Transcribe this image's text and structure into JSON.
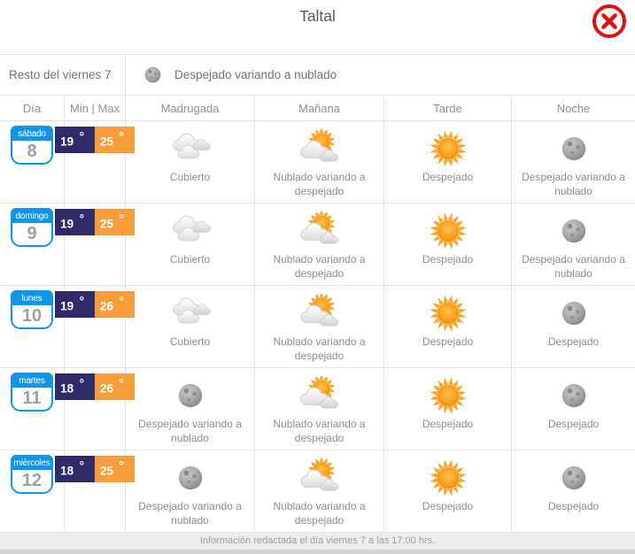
{
  "window": {
    "title": "Taltal"
  },
  "today": {
    "label": "Resto del viernes 7",
    "icon": "moon",
    "condition": "Despejado variando a nublado"
  },
  "table": {
    "columns": [
      "Día",
      "Min | Max",
      "Madrugada",
      "Mañana",
      "Tarde",
      "Noche"
    ],
    "rows": [
      {
        "day_name": "sábado",
        "day_number": "8",
        "min": "19°",
        "max": "25°",
        "periods": [
          {
            "icon": "clouds",
            "label": "Cubierto"
          },
          {
            "icon": "sun-cloud",
            "label": "Nublado variando a despejado"
          },
          {
            "icon": "sun",
            "label": "Despejado"
          },
          {
            "icon": "moon",
            "label": "Despejado variando a nublado"
          }
        ]
      },
      {
        "day_name": "domingo",
        "day_number": "9",
        "min": "19°",
        "max": "25°",
        "periods": [
          {
            "icon": "clouds",
            "label": "Cubierto"
          },
          {
            "icon": "sun-cloud",
            "label": "Nublado variando a despejado"
          },
          {
            "icon": "sun",
            "label": "Despejado"
          },
          {
            "icon": "moon",
            "label": "Despejado variando a nublado"
          }
        ]
      },
      {
        "day_name": "lunes",
        "day_number": "10",
        "min": "19°",
        "max": "26°",
        "periods": [
          {
            "icon": "clouds",
            "label": "Cubierto"
          },
          {
            "icon": "sun-cloud",
            "label": "Nublado variando a despejado"
          },
          {
            "icon": "sun",
            "label": "Despejado"
          },
          {
            "icon": "moon",
            "label": "Despejado"
          }
        ]
      },
      {
        "day_name": "martes",
        "day_number": "11",
        "min": "18°",
        "max": "26°",
        "periods": [
          {
            "icon": "moon",
            "label": "Despejado variando a nublado"
          },
          {
            "icon": "sun-cloud",
            "label": "Nublado variando a despejado"
          },
          {
            "icon": "sun",
            "label": "Despejado"
          },
          {
            "icon": "moon",
            "label": "Despejado"
          }
        ]
      },
      {
        "day_name": "miércoles",
        "day_number": "12",
        "min": "18°",
        "max": "25°",
        "periods": [
          {
            "icon": "moon",
            "label": "Despejado variando a nublado"
          },
          {
            "icon": "sun-cloud",
            "label": "Nublado variando a despejado"
          },
          {
            "icon": "sun",
            "label": "Despejado"
          },
          {
            "icon": "moon",
            "label": "Despejado"
          }
        ]
      }
    ]
  },
  "footer": {
    "note": "Información redactada el día viernes 7 a las 17:00 hrs."
  },
  "colors": {
    "calendar_blue": "#1295e6",
    "min_badge": "#2e2b68",
    "max_badge": "#f79d3c",
    "close_red": "#e01111",
    "sun_orange": "#f7a428"
  }
}
